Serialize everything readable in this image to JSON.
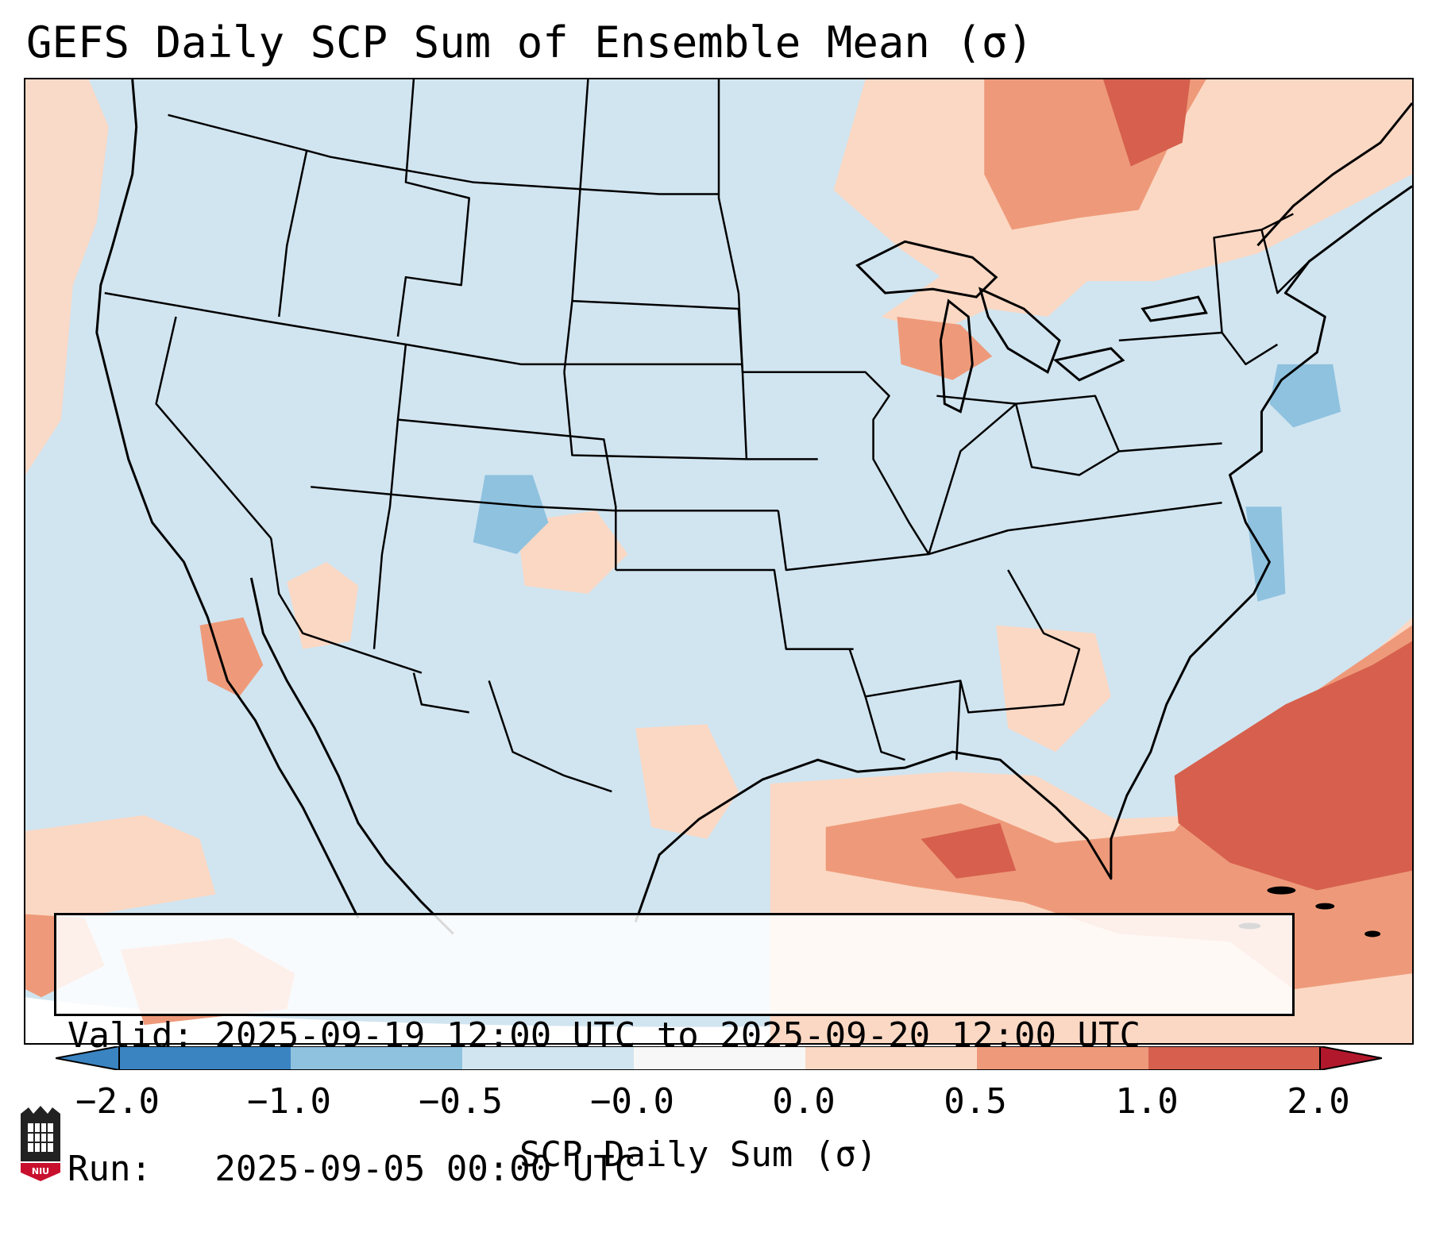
{
  "title": "GEFS Daily SCP Sum of Ensemble Mean (σ)",
  "info": {
    "valid_line": "Valid: 2025-09-19 12:00 UTC to 2025-09-20 12:00 UTC",
    "run_line": "Run:   2025-09-05 00:00 UTC"
  },
  "colorbar": {
    "label": "SCP Daily Sum (σ)",
    "ticks": [
      "−2.0",
      "−1.0",
      "−0.5",
      "−0.0",
      "0.0",
      "0.5",
      "1.0",
      "2.0"
    ],
    "colors": [
      "#3a84c2",
      "#8fc2df",
      "#d1e5f0",
      "#f7f7f7",
      "#fbd8c4",
      "#ee9a7a",
      "#d6604d",
      "#b2182b"
    ]
  },
  "map_colors": {
    "near_zero_negative": "#d1e5f0",
    "light_positive": "#fbd8c4",
    "medium_positive": "#ee9a7a",
    "strong_positive": "#d6604d",
    "negative": "#8fc2df"
  },
  "logo": {
    "text": "NIU"
  }
}
